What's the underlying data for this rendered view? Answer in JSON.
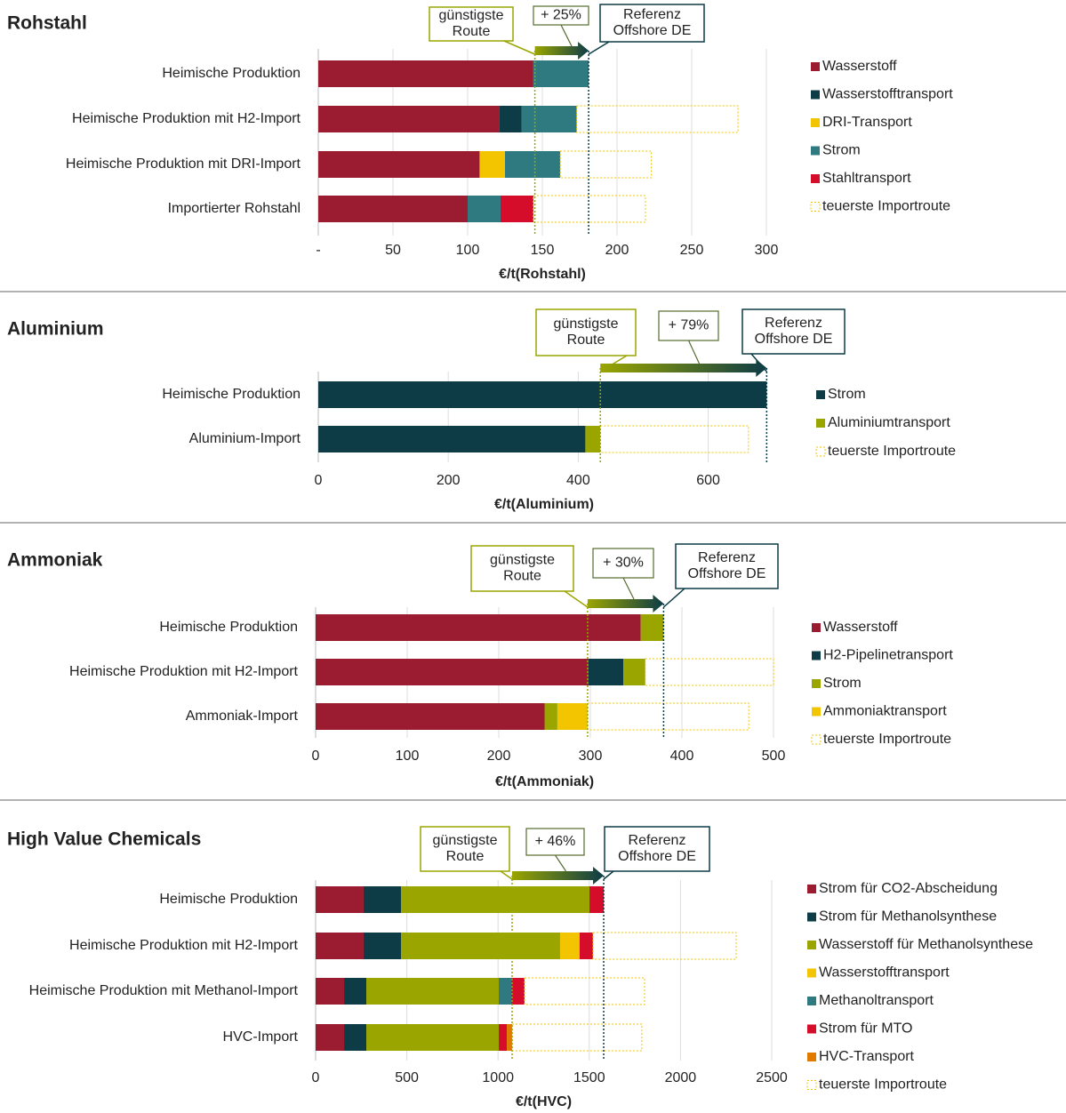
{
  "chart_data": [
    {
      "type": "stacked-barh",
      "title": "Rohstahl",
      "x_label": "€/t(Rohstahl)",
      "categories": [
        "Heimische Produktion",
        "Heimische Produktion mit H2-Import",
        "Heimische Produktion mit DRI-Import",
        "Importierter Rohstahl"
      ],
      "series": [
        {
          "name": "Wasserstoff",
          "color": "#9b1b30",
          "values": [
            144,
            121,
            108,
            100
          ]
        },
        {
          "name": "Wasserstofftransport",
          "color": "#0d3c47",
          "values": [
            null,
            15,
            null,
            null
          ]
        },
        {
          "name": "DRI-Transport",
          "color": "#f2c500",
          "values": [
            null,
            null,
            17,
            null
          ]
        },
        {
          "name": "Strom",
          "color": "#2e7a80",
          "values": [
            37,
            37,
            37,
            22
          ]
        },
        {
          "name": "Stahltransport",
          "color": "#d50c2a",
          "values": [
            null,
            null,
            null,
            22
          ]
        },
        {
          "name": "teuerste Importroute",
          "color": "#f2c500",
          "style": "dotted",
          "values": [
            null,
            108,
            61,
            75
          ]
        }
      ],
      "xlim": [
        0,
        300
      ],
      "xticks": [
        {
          "value": 0,
          "label": "-"
        },
        50,
        100,
        150,
        200,
        250,
        300
      ],
      "grid": true,
      "reference_lines": [
        {
          "label": [
            "günstigste",
            "Route"
          ],
          "value": 145,
          "color": "#9aa500"
        },
        {
          "label": [
            "Referenz",
            "Offshore DE"
          ],
          "value": 181,
          "color": "#0d3c47"
        }
      ],
      "change_label": "+ 25%"
    },
    {
      "type": "stacked-barh",
      "title": "Aluminium",
      "x_label": "€/t(Aluminium)",
      "categories": [
        "Heimische Produktion",
        "Aluminium-Import"
      ],
      "series": [
        {
          "name": "Strom",
          "color": "#0d3c47",
          "values": [
            690,
            411
          ]
        },
        {
          "name": "Aluminiumtransport",
          "color": "#9aa500",
          "values": [
            null,
            23
          ]
        },
        {
          "name": "teuerste Importroute",
          "color": "#f2c500",
          "style": "dotted",
          "values": [
            null,
            228
          ]
        }
      ],
      "xlim": [
        0,
        695
      ],
      "xticks": [
        0,
        200,
        400,
        600
      ],
      "grid": true,
      "reference_lines": [
        {
          "label": [
            "günstigste",
            "Route"
          ],
          "value": 434,
          "color": "#9aa500"
        },
        {
          "label": [
            "Referenz",
            "Offshore DE"
          ],
          "value": 690,
          "color": "#0d3c47"
        }
      ],
      "change_label": "+ 79%"
    },
    {
      "type": "stacked-barh",
      "title": "Ammoniak",
      "x_label": "€/t(Ammoniak)",
      "categories": [
        "Heimische Produktion",
        "Heimische Produktion mit H2-Import",
        "Ammoniak-Import"
      ],
      "series": [
        {
          "name": "Wasserstoff",
          "color": "#9b1b30",
          "values": [
            355,
            298,
            250
          ]
        },
        {
          "name": "H2-Pipelinetransport",
          "color": "#0d3c47",
          "values": [
            null,
            38,
            null
          ]
        },
        {
          "name": "Strom",
          "color": "#9aa500",
          "values": [
            25,
            24,
            14
          ]
        },
        {
          "name": "Ammoniaktransport",
          "color": "#f2c500",
          "values": [
            null,
            null,
            33
          ]
        },
        {
          "name": "teuerste Importroute",
          "color": "#f2c500",
          "style": "dotted",
          "values": [
            null,
            140,
            176
          ]
        }
      ],
      "xlim": [
        0,
        500
      ],
      "xticks": [
        0,
        100,
        200,
        300,
        400,
        500
      ],
      "grid": true,
      "reference_lines": [
        {
          "label": [
            "günstigste",
            "Route"
          ],
          "value": 297,
          "color": "#9aa500"
        },
        {
          "label": [
            "Referenz",
            "Offshore DE"
          ],
          "value": 380,
          "color": "#0d3c47"
        }
      ],
      "change_label": "+ 30%"
    },
    {
      "type": "stacked-barh",
      "title": "High Value Chemicals",
      "x_label": "€/t(HVC)",
      "categories": [
        "Heimische Produktion",
        "Heimische Produktion mit H2-Import",
        "Heimische Produktion mit Methanol-Import",
        "HVC-Import"
      ],
      "series": [
        {
          "name": "Strom für CO2-Abscheidung",
          "color": "#9b1b30",
          "values": [
            263,
            263,
            156,
            156
          ]
        },
        {
          "name": "Strom für Methanolsynthese",
          "color": "#0d3c47",
          "values": [
            205,
            205,
            122,
            122
          ]
        },
        {
          "name": "Wasserstoff für Methanolsynthese",
          "color": "#9aa500",
          "values": [
            1033,
            872,
            726,
            726
          ]
        },
        {
          "name": "Wasserstofftransport",
          "color": "#f2c500",
          "values": [
            null,
            107,
            null,
            null
          ]
        },
        {
          "name": "Methanoltransport",
          "color": "#2e7a80",
          "values": [
            null,
            null,
            68,
            null
          ]
        },
        {
          "name": "Strom für MTO",
          "color": "#d50c2a",
          "values": [
            78,
            73,
            73,
            44
          ]
        },
        {
          "name": "HVC-Transport",
          "color": "#e07b00",
          "values": [
            null,
            null,
            null,
            29
          ]
        },
        {
          "name": "teuerste Importroute",
          "color": "#f2c500",
          "style": "dotted",
          "values": [
            null,
            785,
            658,
            711
          ]
        }
      ],
      "xlim": [
        0,
        2500
      ],
      "xticks": [
        0,
        500,
        1000,
        1500,
        2000,
        2500
      ],
      "grid": true,
      "reference_lines": [
        {
          "label": [
            "günstigste",
            "Route"
          ],
          "value": 1077,
          "color": "#9aa500"
        },
        {
          "label": [
            "Referenz",
            "Offshore DE"
          ],
          "value": 1579,
          "color": "#0d3c47"
        }
      ],
      "change_label": "+ 46%"
    }
  ]
}
